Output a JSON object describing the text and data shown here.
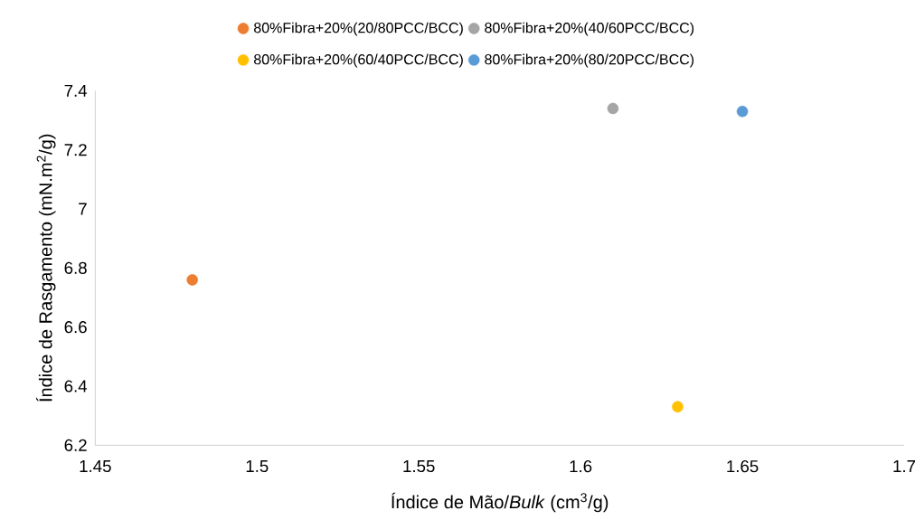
{
  "chart_data": {
    "type": "scatter",
    "xlabel": "Índice de Mão/*Bulk* (cm$^{3}$/g)",
    "ylabel": "Índice de Rasgamento (mN.m$^{2}$/g)",
    "series": [
      {
        "name": "80%Fibra+20%(20/80PCC/BCC)",
        "color": "#ed7d31",
        "x": [
          1.48
        ],
        "values": [
          6.76
        ]
      },
      {
        "name": "80%Fibra+20%(40/60PCC/BCC)",
        "color": "#a5a5a5",
        "x": [
          1.61
        ],
        "values": [
          7.34
        ]
      },
      {
        "name": "80%Fibra+20%(60/40PCC/BCC)",
        "color": "#ffc000",
        "x": [
          1.63
        ],
        "values": [
          6.33
        ]
      },
      {
        "name": "80%Fibra+20%(80/20PCC/BCC)",
        "color": "#5b9bd5",
        "x": [
          1.65
        ],
        "values": [
          7.33
        ]
      }
    ],
    "xlim": [
      1.45,
      1.7
    ],
    "ylim": [
      6.2,
      7.4
    ],
    "xticks": [
      1.45,
      1.5,
      1.55,
      1.6,
      1.65,
      1.7
    ],
    "yticks": [
      6.2,
      6.4,
      6.6,
      6.8,
      7,
      7.2,
      7.4
    ],
    "legend": "top"
  }
}
